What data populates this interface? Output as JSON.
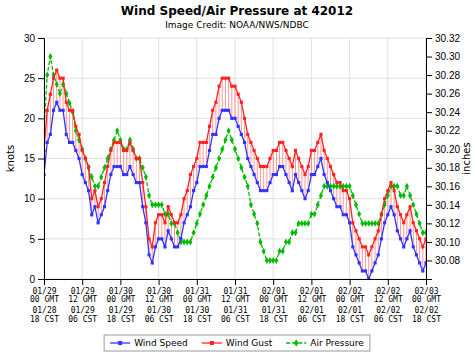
{
  "chart_data": {
    "type": "line",
    "title": "Wind Speed/Air Pressure at 42012",
    "subtitle": "Image Credit: NOAA/NWS/NDBC",
    "ylabel": "knots",
    "y2label": "inches",
    "categories": [
      "01/29\n00 GMT\n01/28\n18 CST",
      null,
      null,
      null,
      null,
      null,
      null,
      null,
      null,
      null,
      null,
      null,
      "01/29\n12 GMT\n01/29\n06 CST",
      null,
      null,
      null,
      null,
      null,
      null,
      null,
      null,
      null,
      null,
      null,
      "01/30\n00 GMT\n01/29\n18 CST",
      null,
      null,
      null,
      null,
      null,
      null,
      null,
      null,
      null,
      null,
      null,
      "01/30\n12 GMT\n01/30\n06 CST",
      null,
      null,
      null,
      null,
      null,
      null,
      null,
      null,
      null,
      null,
      null,
      "01/31\n00 GMT\n01/30\n18 CST",
      null,
      null,
      null,
      null,
      null,
      null,
      null,
      null,
      null,
      null,
      null,
      "01/31\n12 GMT\n01/31\n06 CST",
      null,
      null,
      null,
      null,
      null,
      null,
      null,
      null,
      null,
      null,
      null,
      "02/01\n00 GMT\n01/31\n18 CST",
      null,
      null,
      null,
      null,
      null,
      null,
      null,
      null,
      null,
      null,
      null,
      "02/01\n12 GMT\n02/01\n06 CST",
      null,
      null,
      null,
      null,
      null,
      null,
      null,
      null,
      null,
      null,
      null,
      "02/02\n00 GMT\n02/01\n18 CST",
      null,
      null,
      null,
      null,
      null,
      null,
      null,
      null,
      null,
      null,
      null,
      "02/02\n12 GMT\n02/02\n06 CST",
      null,
      null,
      null,
      null,
      null,
      null,
      null,
      null,
      null,
      null,
      null,
      "02/03\n00 GMT\n02/02\n18 CST"
    ],
    "series": [
      {
        "name": "Wind Speed",
        "color": "#3333ff",
        "marker": "square",
        "line_style": "solid",
        "values": [
          13,
          17,
          18,
          21,
          22,
          21,
          21,
          18,
          17,
          17,
          16,
          15,
          13,
          12,
          11,
          8,
          9,
          7,
          8,
          9,
          11,
          13,
          14,
          14,
          14,
          13,
          13,
          14,
          13,
          12,
          12,
          9,
          7,
          3,
          2,
          4,
          5,
          5,
          4,
          6,
          5,
          4,
          4,
          5,
          7,
          8,
          9,
          11,
          12,
          14,
          14,
          14,
          16,
          18,
          18,
          20,
          21,
          21,
          21,
          20,
          20,
          19,
          18,
          17,
          15,
          14,
          13,
          12,
          11,
          11,
          11,
          12,
          13,
          13,
          14,
          14,
          13,
          12,
          11,
          13,
          12,
          11,
          10,
          11,
          13,
          13,
          14,
          15,
          13,
          12,
          11,
          10,
          9,
          9,
          8,
          8,
          7,
          4,
          3,
          2,
          1,
          1,
          0,
          1,
          2,
          3,
          5,
          7,
          8,
          9,
          8,
          6,
          5,
          4,
          5,
          6,
          4,
          3,
          2,
          1,
          2
        ]
      },
      {
        "name": "Wind Gust",
        "color": "#ff2222",
        "marker": "square",
        "line_style": "solid",
        "values": [
          16,
          21,
          23,
          25,
          26,
          25,
          25,
          22,
          21,
          21,
          19,
          18,
          16,
          15,
          14,
          10,
          11,
          9,
          10,
          12,
          14,
          16,
          17,
          17,
          17,
          16,
          16,
          17,
          16,
          15,
          15,
          12,
          9,
          5,
          4,
          7,
          8,
          8,
          7,
          9,
          8,
          7,
          7,
          8,
          10,
          11,
          13,
          14,
          15,
          17,
          17,
          17,
          19,
          21,
          22,
          24,
          25,
          25,
          25,
          24,
          24,
          23,
          22,
          20,
          18,
          17,
          16,
          15,
          14,
          14,
          14,
          15,
          16,
          16,
          17,
          17,
          16,
          15,
          14,
          16,
          15,
          14,
          13,
          14,
          16,
          16,
          17,
          18,
          16,
          15,
          14,
          13,
          12,
          12,
          11,
          11,
          10,
          7,
          6,
          5,
          4,
          4,
          3,
          4,
          5,
          6,
          8,
          10,
          11,
          12,
          11,
          9,
          8,
          7,
          8,
          9,
          7,
          6,
          5,
          4,
          5
        ]
      },
      {
        "name": "Air Pressure",
        "color": "#00bb00",
        "marker": "diamond",
        "line_style": "dashed",
        "axis": "y2",
        "values": [
          30.22,
          30.28,
          30.3,
          30.28,
          30.27,
          30.26,
          30.27,
          30.26,
          30.25,
          30.24,
          30.22,
          30.21,
          30.2,
          30.19,
          30.18,
          30.17,
          30.16,
          30.16,
          30.17,
          30.18,
          30.19,
          30.2,
          30.21,
          30.22,
          30.21,
          30.2,
          30.2,
          30.21,
          30.2,
          30.19,
          30.19,
          30.18,
          30.17,
          30.15,
          30.14,
          30.14,
          30.14,
          30.14,
          30.13,
          30.13,
          30.12,
          30.12,
          30.11,
          30.1,
          30.1,
          30.1,
          30.1,
          30.11,
          30.12,
          30.13,
          30.14,
          30.15,
          30.16,
          30.17,
          30.18,
          30.19,
          30.2,
          30.21,
          30.22,
          30.21,
          30.2,
          30.19,
          30.18,
          30.17,
          30.16,
          30.14,
          30.13,
          30.12,
          30.1,
          30.09,
          30.08,
          30.08,
          30.08,
          30.08,
          30.09,
          30.09,
          30.1,
          30.1,
          30.11,
          30.11,
          30.12,
          30.12,
          30.12,
          30.12,
          30.13,
          30.13,
          30.14,
          30.15,
          30.16,
          30.16,
          30.16,
          30.16,
          30.16,
          30.16,
          30.16,
          30.16,
          30.16,
          30.15,
          30.14,
          30.13,
          30.12,
          30.12,
          30.12,
          30.12,
          30.12,
          30.12,
          30.13,
          30.14,
          30.15,
          30.16,
          30.16,
          30.16,
          30.15,
          30.15,
          30.16,
          30.15,
          30.14,
          30.13,
          30.12,
          30.11,
          30.11
        ]
      }
    ],
    "ylim": [
      0,
      30
    ],
    "yticks": [
      0,
      5,
      10,
      15,
      20,
      25,
      30
    ],
    "y2lim": [
      30.06,
      30.32
    ],
    "y2ticks": [
      30.08,
      {
        "value": 30.1,
        "label": "30.10"
      },
      30.12,
      30.14,
      30.16,
      30.18,
      {
        "value": 30.2,
        "label": "30.20"
      },
      30.22,
      30.24,
      30.26,
      30.28,
      {
        "value": 30.3,
        "label": "30.30"
      },
      30.32
    ],
    "grid": true,
    "legend": "bottom"
  }
}
